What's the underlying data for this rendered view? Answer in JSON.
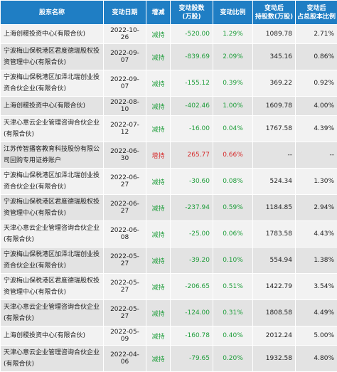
{
  "headers": [
    "股东名称",
    "变动日期",
    "增减",
    "变动股数\n(万股)",
    "变动比例",
    "变动后\n持股数(万股)",
    "变动后\n占总股本比例"
  ],
  "rows": [
    {
      "name": "上海创稷投资中心(有限合伙)",
      "date": "2022-10-26",
      "dir": "减持",
      "shares": "-520.00",
      "ratio": "1.29%",
      "after": "1089.78",
      "pct": "2.71%",
      "type": "dec",
      "short": true
    },
    {
      "name": "宁波梅山保税港区君度德瑞股权投资管理中心(有限合伙)",
      "date": "2022-09-07",
      "dir": "减持",
      "shares": "-839.69",
      "ratio": "2.09%",
      "after": "345.16",
      "pct": "0.86%",
      "type": "dec",
      "short": false
    },
    {
      "name": "宁波梅山保税港区加泽北瑞创业投资合伙企业(有限合伙)",
      "date": "2022-09-07",
      "dir": "减持",
      "shares": "-155.12",
      "ratio": "0.39%",
      "after": "369.22",
      "pct": "0.92%",
      "type": "dec",
      "short": false
    },
    {
      "name": "上海创稷投资中心(有限合伙)",
      "date": "2022-08-10",
      "dir": "减持",
      "shares": "-402.46",
      "ratio": "1.00%",
      "after": "1609.78",
      "pct": "4.00%",
      "type": "dec",
      "short": true
    },
    {
      "name": "天津心意云企业管理咨询合伙企业(有限合伙)",
      "date": "2022-07-12",
      "dir": "减持",
      "shares": "-16.00",
      "ratio": "0.04%",
      "after": "1767.58",
      "pct": "4.39%",
      "type": "dec",
      "short": false
    },
    {
      "name": "江苏传智播客教育科技股份有限公司回购专用证券账户",
      "date": "2022-06-30",
      "dir": "增持",
      "shares": "265.77",
      "ratio": "0.66%",
      "after": "--",
      "pct": "--",
      "type": "inc",
      "short": false
    },
    {
      "name": "宁波梅山保税港区加泽北瑞创业投资合伙企业(有限合伙)",
      "date": "2022-06-27",
      "dir": "减持",
      "shares": "-30.60",
      "ratio": "0.08%",
      "after": "524.34",
      "pct": "1.30%",
      "type": "dec",
      "short": false
    },
    {
      "name": "宁波梅山保税港区君度德瑞股权投资管理中心(有限合伙)",
      "date": "2022-06-27",
      "dir": "减持",
      "shares": "-237.94",
      "ratio": "0.59%",
      "after": "1184.85",
      "pct": "2.94%",
      "type": "dec",
      "short": false
    },
    {
      "name": "天津心意云企业管理咨询合伙企业(有限合伙)",
      "date": "2022-06-08",
      "dir": "减持",
      "shares": "-25.00",
      "ratio": "0.06%",
      "after": "1783.58",
      "pct": "4.43%",
      "type": "dec",
      "short": false
    },
    {
      "name": "宁波梅山保税港区加泽北瑞创业投资合伙企业(有限合伙)",
      "date": "2022-05-27",
      "dir": "减持",
      "shares": "-39.20",
      "ratio": "0.10%",
      "after": "554.94",
      "pct": "1.38%",
      "type": "dec",
      "short": false
    },
    {
      "name": "宁波梅山保税港区君度德瑞股权投资管理中心(有限合伙)",
      "date": "2022-05-27",
      "dir": "减持",
      "shares": "-206.65",
      "ratio": "0.51%",
      "after": "1422.79",
      "pct": "3.54%",
      "type": "dec",
      "short": false
    },
    {
      "name": "天津心意云企业管理咨询合伙企业(有限合伙)",
      "date": "2022-05-27",
      "dir": "减持",
      "shares": "-124.00",
      "ratio": "0.31%",
      "after": "1808.58",
      "pct": "4.49%",
      "type": "dec",
      "short": false
    },
    {
      "name": "上海创稷投资中心(有限合伙)",
      "date": "2022-05-09",
      "dir": "减持",
      "shares": "-160.78",
      "ratio": "0.40%",
      "after": "2012.24",
      "pct": "5.00%",
      "type": "dec",
      "short": true
    },
    {
      "name": "天津心意云企业管理咨询合伙企业(有限合伙)",
      "date": "2022-04-06",
      "dir": "减持",
      "shares": "-79.65",
      "ratio": "0.20%",
      "after": "1932.58",
      "pct": "4.80%",
      "type": "dec",
      "short": false
    }
  ],
  "colors": {
    "header_bg": "#1f7ec4",
    "decrease": "#1f9e3b",
    "increase": "#d62a2a"
  }
}
